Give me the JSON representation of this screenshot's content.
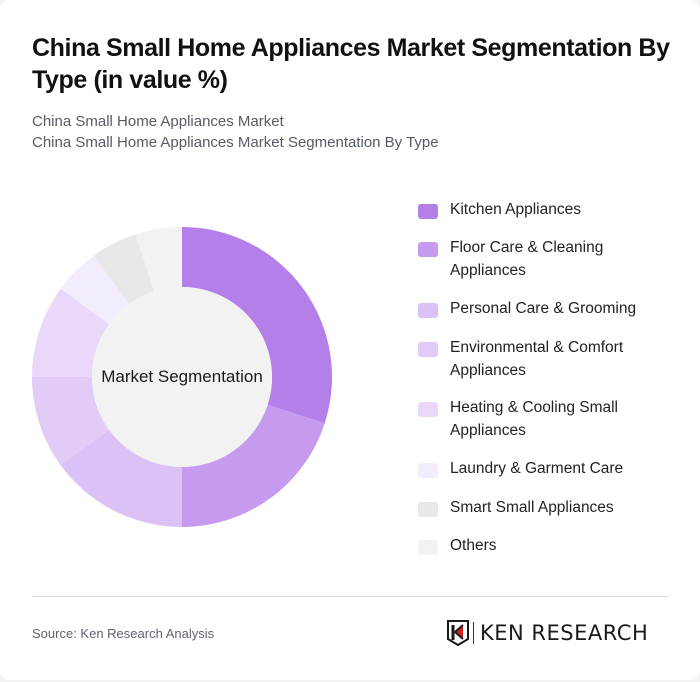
{
  "header": {
    "title": "China Small Home Appliances Market Segmentation By Type (in value %)",
    "subtitle_1": "China Small Home Appliances Market",
    "subtitle_2": "China Small Home Appliances Market Segmentation By Type"
  },
  "chart": {
    "center_label": "Market Segmentation"
  },
  "legend": {
    "items": [
      {
        "label": "Kitchen Appliances",
        "color": "#b57fea"
      },
      {
        "label": "Floor Care & Cleaning Appliances",
        "color": "#c69bef"
      },
      {
        "label": "Personal Care & Grooming",
        "color": "#dcc1f6"
      },
      {
        "label": "Environmental & Comfort Appliances",
        "color": "#e2cbf7"
      },
      {
        "label": "Heating & Cooling Small Appliances",
        "color": "#e9d8f9"
      },
      {
        "label": "Laundry & Garment Care",
        "color": "#f3ecfc"
      },
      {
        "label": "Smart Small Appliances",
        "color": "#e8e8e8"
      },
      {
        "label": "Others",
        "color": "#f2f2f2"
      }
    ]
  },
  "footer": {
    "source": "Source: Ken Research Analysis",
    "logo_text": "KEN RESEARCH"
  },
  "chart_data": {
    "type": "pie",
    "donut": true,
    "title": "China Small Home Appliances Market Segmentation By Type (in value %)",
    "center_label": "Market Segmentation",
    "categories": [
      "Kitchen Appliances",
      "Floor Care & Cleaning Appliances",
      "Personal Care & Grooming",
      "Environmental & Comfort Appliances",
      "Heating & Cooling Small Appliances",
      "Laundry & Garment Care",
      "Smart Small Appliances",
      "Others"
    ],
    "values": [
      30,
      20,
      15,
      10,
      10,
      5,
      5,
      5
    ],
    "colors": [
      "#b57fea",
      "#c69bef",
      "#dcc1f6",
      "#e2cbf7",
      "#e9d8f9",
      "#f3ecfc",
      "#e8e8e8",
      "#f2f2f2"
    ],
    "legend_position": "right",
    "unit": "%"
  }
}
